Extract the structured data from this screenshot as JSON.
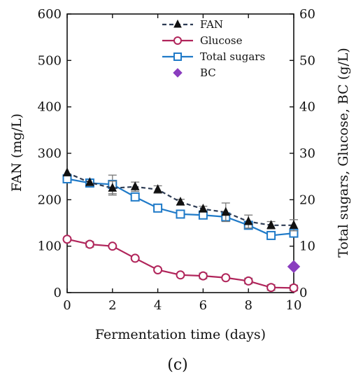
{
  "chart_data": {
    "type": "line",
    "caption": "(c)",
    "xlabel": "Fermentation time (days)",
    "ylabel_left": "FAN (mg/L)",
    "ylabel_right": "Total sugars, Glucose, BC (g/L)",
    "xlim": [
      0,
      10
    ],
    "ylim_left": [
      0,
      600
    ],
    "ylim_right": [
      0,
      60
    ],
    "x_ticks": [
      0,
      2,
      4,
      6,
      8,
      10
    ],
    "y_ticks_left": [
      0,
      100,
      200,
      300,
      400,
      500,
      600
    ],
    "y_ticks_right": [
      0,
      10,
      20,
      30,
      40,
      50,
      60
    ],
    "grid": false,
    "legend_position": "top-right",
    "series": [
      {
        "name": "FAN",
        "axis": "left",
        "color": "#2f3d55",
        "marker": "triangle",
        "line": "dashed",
        "x": [
          0,
          1,
          2,
          3,
          4,
          5,
          6,
          7,
          8,
          9,
          10
        ],
        "y": [
          258,
          237,
          225,
          228,
          222,
          195,
          180,
          173,
          153,
          145,
          145
        ],
        "error": [
          0,
          0,
          15,
          10,
          8,
          6,
          6,
          20,
          14,
          8,
          12
        ]
      },
      {
        "name": "Glucose",
        "axis": "right",
        "color": "#b0245a",
        "marker": "circle",
        "line": "solid",
        "x": [
          0,
          1,
          2,
          3,
          4,
          5,
          6,
          7,
          8,
          9,
          10
        ],
        "y": [
          11.5,
          10.4,
          10.0,
          7.4,
          4.9,
          3.8,
          3.6,
          3.2,
          2.5,
          1.1,
          1.0
        ],
        "error": [
          0,
          0.6,
          0,
          0,
          0,
          0,
          0.6,
          0,
          0.6,
          0.6,
          0.6
        ]
      },
      {
        "name": "Total sugars",
        "axis": "right",
        "color": "#1f7ac8",
        "marker": "square",
        "line": "solid",
        "x": [
          0,
          1,
          2,
          3,
          4,
          5,
          6,
          7,
          8,
          9,
          10
        ],
        "y": [
          24.5,
          23.6,
          23.3,
          20.6,
          18.2,
          16.9,
          16.7,
          16.3,
          14.5,
          12.3,
          12.8
        ],
        "error": [
          0,
          0,
          2.0,
          0,
          0,
          0,
          0,
          0,
          0,
          0,
          0
        ]
      },
      {
        "name": "BC",
        "axis": "right",
        "color": "#8a3dbf",
        "marker": "diamond",
        "line": "none",
        "x": [
          10
        ],
        "y": [
          5.6
        ],
        "error": [
          0
        ]
      }
    ]
  }
}
